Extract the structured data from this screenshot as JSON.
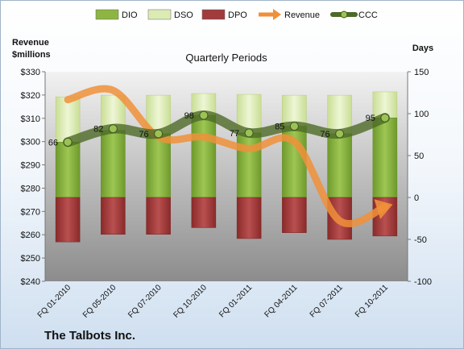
{
  "chart_data": {
    "type": "bar",
    "title": "Quarterly Periods",
    "company": "The Talbots Inc.",
    "left_axis_label": "Revenue\n$millions",
    "right_axis_label": "Days",
    "categories": [
      "FQ 01-2010",
      "FQ 05-2010",
      "FQ 07-2010",
      "FQ 10-2010",
      "FQ 01-2011",
      "FQ 04-2011",
      "FQ 07-2011",
      "FQ 10-2011"
    ],
    "left_ylim": [
      240,
      330
    ],
    "left_ticks": [
      "$240",
      "$250",
      "$260",
      "$270",
      "$280",
      "$290",
      "$300",
      "$310",
      "$320",
      "$330"
    ],
    "right_ylim": [
      -100,
      150
    ],
    "right_ticks": [
      "-100",
      "-50",
      "0",
      "50",
      "100",
      "150"
    ],
    "series": [
      {
        "name": "DIO",
        "axis": "days",
        "color": "#8db542",
        "values": [
          66,
          80,
          76,
          98,
          77,
          85,
          76,
          95
        ]
      },
      {
        "name": "DSO",
        "axis": "days",
        "color": "#dcebb4",
        "values": [
          54,
          42,
          46,
          26,
          46,
          37,
          46,
          31
        ]
      },
      {
        "name": "DPO",
        "axis": "days",
        "color": "#a23b3b",
        "values": [
          -53,
          -44,
          -44,
          -36,
          -49,
          -42,
          -50,
          -46
        ]
      },
      {
        "name": "Revenue",
        "axis": "revenue",
        "color": "#f0903a",
        "values": [
          318,
          322,
          302,
          302,
          297,
          300,
          266,
          272
        ]
      },
      {
        "name": "CCC",
        "axis": "days",
        "color": "#4e6a28",
        "values": [
          66,
          82,
          76,
          98,
          77,
          85,
          76,
          95
        ]
      }
    ],
    "ccc_labels": [
      "66",
      "82",
      "76",
      "98",
      "77",
      "85",
      "76",
      "95"
    ],
    "grid": false,
    "legend_position": "top"
  }
}
